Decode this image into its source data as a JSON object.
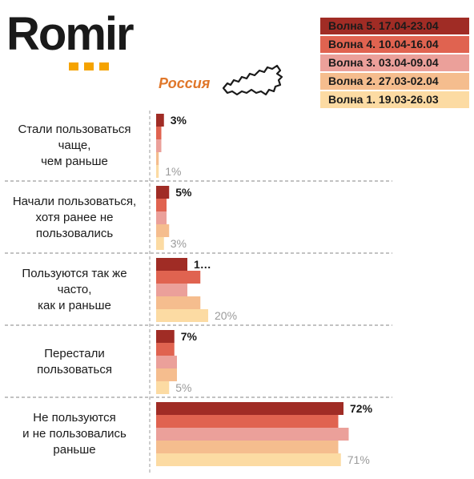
{
  "brand": {
    "name": "Romir"
  },
  "region_label": "Россия",
  "legend": [
    {
      "label": "Волна 5. 17.04-23.04",
      "color": "#a02c25"
    },
    {
      "label": "Волна 4. 10.04-16.04",
      "color": "#e06350"
    },
    {
      "label": "Волна 3. 03.04-09.04",
      "color": "#eba09a"
    },
    {
      "label": "Волна 2. 27.03-02.04",
      "color": "#f5bd8e"
    },
    {
      "label": "Волна 1. 19.03-26.03",
      "color": "#fcdba3"
    }
  ],
  "chart_data": {
    "type": "bar",
    "orientation": "horizontal",
    "categories": [
      "Стали пользоваться чаще, чем раньше",
      "Начали пользоваться, хотя ранее не пользовались",
      "Пользуются так же часто, как и раньше",
      "Перестали пользоваться",
      "Не пользуются и не пользовались раньше"
    ],
    "category_lines": [
      [
        "Стали пользоваться",
        "чаще,",
        "чем раньше"
      ],
      [
        "Начали пользоваться,",
        "хотя ранее не",
        "пользовались"
      ],
      [
        "Пользуются так же",
        "часто,",
        "как и раньше"
      ],
      [
        "Перестали",
        "пользоваться"
      ],
      [
        "Не пользуются",
        "и не пользовались",
        "раньше"
      ]
    ],
    "series": [
      {
        "name": "Волна 5. 17.04-23.04",
        "values": [
          3,
          5,
          12,
          7,
          72
        ]
      },
      {
        "name": "Волна 4. 10.04-16.04",
        "values": [
          2,
          4,
          17,
          7,
          70
        ]
      },
      {
        "name": "Волна 3. 03.04-09.04",
        "values": [
          2,
          4,
          12,
          8,
          74
        ]
      },
      {
        "name": "Волна 2. 27.03-02.04",
        "values": [
          1,
          5,
          17,
          8,
          70
        ]
      },
      {
        "name": "Волна 1. 19.03-26.03",
        "values": [
          1,
          3,
          20,
          5,
          71
        ]
      }
    ],
    "value_labels": {
      "first": [
        "3%",
        "5%",
        "1…",
        "7%",
        "72%"
      ],
      "last": [
        "1%",
        "3%",
        "20%",
        "5%",
        "71%"
      ]
    },
    "xlim": [
      0,
      100
    ]
  }
}
